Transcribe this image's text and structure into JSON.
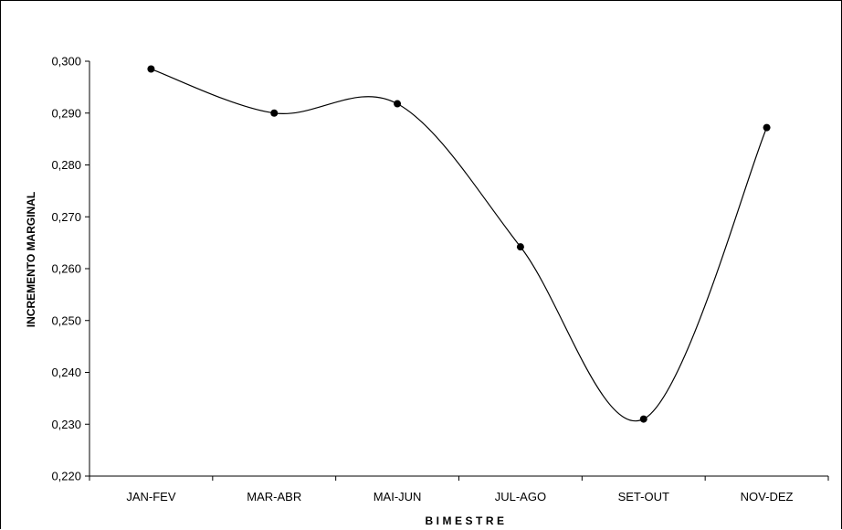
{
  "chart_data": {
    "type": "line",
    "categories": [
      "JAN-FEV",
      "MAR-ABR",
      "MAI-JUN",
      "JUL-AGO",
      "SET-OUT",
      "NOV-DEZ"
    ],
    "series": [
      {
        "values": [
          0.2985,
          0.29,
          0.2918,
          0.2642,
          0.231,
          0.2872
        ]
      }
    ],
    "y_ticks": [
      "0,220",
      "0,230",
      "0,240",
      "0,250",
      "0,260",
      "0,270",
      "0,280",
      "0,290",
      "0,300"
    ],
    "ylim": [
      0.22,
      0.3
    ],
    "xlabel": "BIMESTRE",
    "ylabel": "INCREMENTO MARGINAL",
    "line_color": "#000000",
    "smooth": true,
    "grid": false,
    "legend": "none"
  }
}
